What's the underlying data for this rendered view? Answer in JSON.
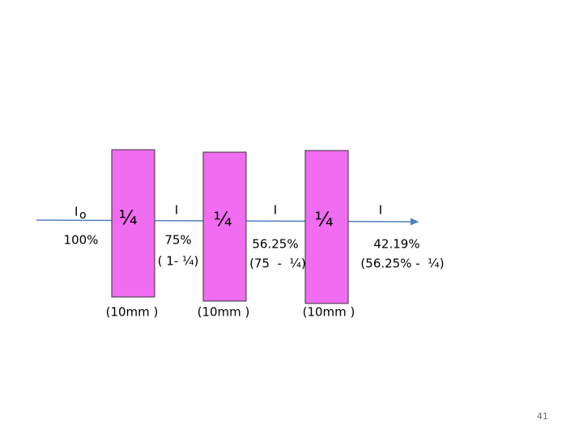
{
  "incident": {
    "label": "I",
    "subscript": "o",
    "percent": "100%"
  },
  "filters": [
    {
      "fraction": "¼",
      "thickness": "(10mm )"
    },
    {
      "fraction": "¼",
      "thickness": "(10mm )"
    },
    {
      "fraction": "¼",
      "thickness": "(10mm )"
    }
  ],
  "outputs": [
    {
      "label": "I",
      "percent": "75%",
      "formula": "( 1- ¼)"
    },
    {
      "label": "I",
      "percent": "56.25%",
      "formula": "(75  -  ¼)"
    },
    {
      "label": "I",
      "percent": "42.19%",
      "formula": "(56.25% -  ¼)"
    }
  ],
  "page_number": "41"
}
